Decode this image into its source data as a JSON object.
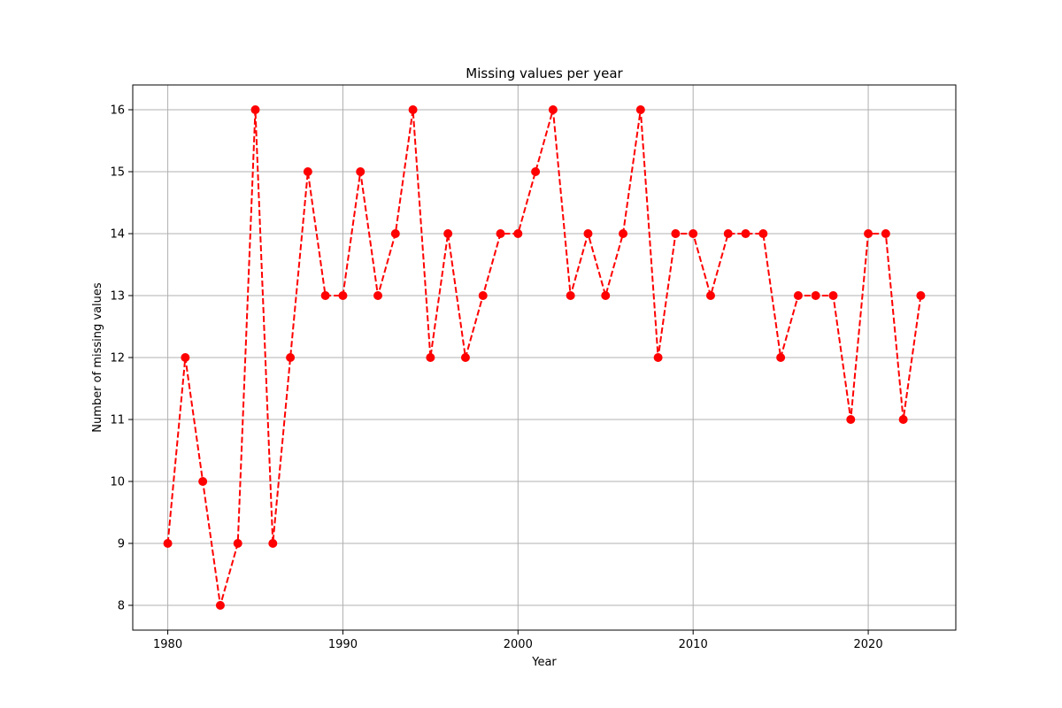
{
  "chart_data": {
    "type": "line",
    "title": "Missing values per year",
    "xlabel": "Year",
    "ylabel": "Number of missing values",
    "xlim": [
      1978,
      2025
    ],
    "ylim": [
      7.6,
      16.4
    ],
    "xticks": [
      1980,
      1990,
      2000,
      2010,
      2020
    ],
    "yticks": [
      8,
      9,
      10,
      11,
      12,
      13,
      14,
      15,
      16
    ],
    "grid": true,
    "legend": "none",
    "series": [
      {
        "color": "#ff0000",
        "line_style": "dashed",
        "marker": "circle",
        "x": [
          1980,
          1981,
          1982,
          1983,
          1984,
          1985,
          1986,
          1987,
          1988,
          1989,
          1990,
          1991,
          1992,
          1993,
          1994,
          1995,
          1996,
          1997,
          1998,
          1999,
          2000,
          2001,
          2002,
          2003,
          2004,
          2005,
          2006,
          2007,
          2008,
          2009,
          2010,
          2011,
          2012,
          2013,
          2014,
          2015,
          2016,
          2017,
          2018,
          2019,
          2020,
          2021,
          2022,
          2023
        ],
        "y": [
          9,
          12,
          10,
          8,
          9,
          16,
          9,
          12,
          15,
          13,
          13,
          15,
          13,
          14,
          16,
          12,
          14,
          12,
          13,
          14,
          14,
          15,
          16,
          13,
          14,
          13,
          14,
          16,
          12,
          14,
          14,
          13,
          14,
          14,
          14,
          12,
          13,
          13,
          13,
          11,
          14,
          14,
          11,
          13
        ]
      }
    ]
  }
}
